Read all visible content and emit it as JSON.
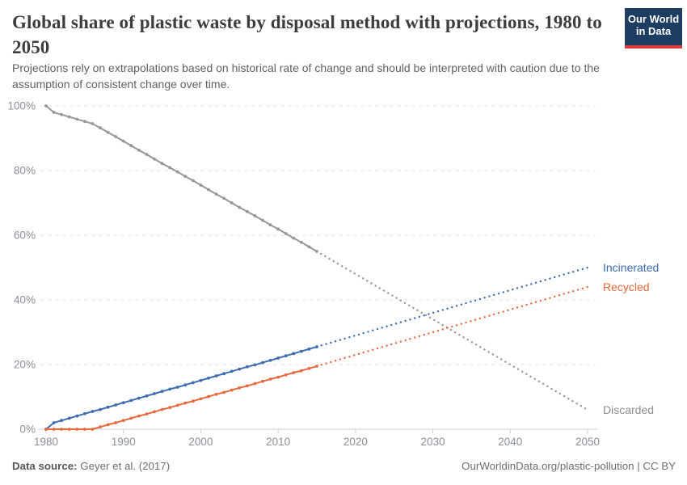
{
  "header": {
    "title": "Global share of plastic waste by disposal method with projections, 1980 to 2050",
    "subtitle": "Projections rely on extrapolations based on historical rate of change and should be interpreted with caution due to the assumption of consistent change over time."
  },
  "logo": {
    "line1": "Our World",
    "line2": "in Data",
    "bg_color": "#1d3d63",
    "accent_color": "#dc3b3b"
  },
  "footer": {
    "source_label": "Data source:",
    "source_value": "Geyer et al. (2017)",
    "license": "OurWorldinData.org/plastic-pollution | CC BY"
  },
  "chart_data": {
    "type": "line",
    "title": "Global share of plastic waste by disposal method with projections, 1980 to 2050",
    "xlabel": "",
    "ylabel": "",
    "x_range": [
      1980,
      2050
    ],
    "y_range": [
      0,
      100
    ],
    "grid": true,
    "grid_color": "#e4e4e4",
    "axis_color": "#c9cdd1",
    "legend_position": "end-of-line-labels",
    "projection_note": "dotted lines after 2015 are projections",
    "x_axis": {
      "ticks": [
        {
          "value": 1980,
          "label": "1980"
        },
        {
          "value": 1990,
          "label": "1990"
        },
        {
          "value": 2000,
          "label": "2000"
        },
        {
          "value": 2010,
          "label": "2010"
        },
        {
          "value": 2020,
          "label": "2020"
        },
        {
          "value": 2030,
          "label": "2030"
        },
        {
          "value": 2040,
          "label": "2040"
        },
        {
          "value": 2050,
          "label": "2050"
        }
      ]
    },
    "y_axis": {
      "ticks": [
        {
          "value": 0,
          "label": "0%"
        },
        {
          "value": 20,
          "label": "20%"
        },
        {
          "value": 40,
          "label": "40%"
        },
        {
          "value": 60,
          "label": "60%"
        },
        {
          "value": 80,
          "label": "80%"
        },
        {
          "value": 100,
          "label": "100%"
        }
      ]
    },
    "historical_years": [
      1980,
      1981,
      1982,
      1983,
      1984,
      1985,
      1986,
      1987,
      1988,
      1989,
      1990,
      1991,
      1992,
      1993,
      1994,
      1995,
      1996,
      1997,
      1998,
      1999,
      2000,
      2001,
      2002,
      2003,
      2004,
      2005,
      2006,
      2007,
      2008,
      2009,
      2010,
      2011,
      2012,
      2013,
      2014,
      2015
    ],
    "series": [
      {
        "name": "Discarded",
        "color": "#979797",
        "label_color": "#8d8d8d",
        "historical_values": [
          100,
          98.0,
          97.3,
          96.6,
          95.9,
          95.2,
          94.5,
          93.2,
          91.8,
          90.5,
          89.1,
          87.7,
          86.3,
          85.0,
          83.6,
          82.2,
          80.9,
          79.6,
          78.2,
          76.9,
          75.5,
          74.1,
          72.7,
          71.4,
          70.0,
          68.6,
          67.3,
          66.0,
          64.6,
          63.2,
          61.9,
          60.5,
          59.1,
          57.8,
          56.4,
          55.0
        ],
        "projection": {
          "years": [
            2015,
            2050
          ],
          "values": [
            55.0,
            6.0
          ]
        }
      },
      {
        "name": "Incinerated",
        "color": "#3d6cb1",
        "label_color": "#3d6cb1",
        "historical_values": [
          0,
          2.0,
          2.7,
          3.4,
          4.1,
          4.8,
          5.5,
          6.1,
          6.8,
          7.5,
          8.2,
          8.9,
          9.6,
          10.3,
          11.0,
          11.7,
          12.4,
          13.0,
          13.7,
          14.4,
          15.1,
          15.8,
          16.5,
          17.2,
          17.9,
          18.6,
          19.3,
          19.9,
          20.6,
          21.3,
          22.0,
          22.7,
          23.4,
          24.1,
          24.8,
          25.5
        ],
        "projection": {
          "years": [
            2015,
            2050
          ],
          "values": [
            25.5,
            50.0
          ]
        }
      },
      {
        "name": "Recycled",
        "color": "#e7693f",
        "label_color": "#e7693f",
        "historical_values": [
          0,
          0,
          0,
          0,
          0,
          0,
          0,
          0.7,
          1.4,
          2.0,
          2.7,
          3.4,
          4.1,
          4.7,
          5.4,
          6.1,
          6.7,
          7.4,
          8.1,
          8.7,
          9.4,
          10.1,
          10.8,
          11.4,
          12.1,
          12.8,
          13.4,
          14.1,
          14.8,
          15.5,
          16.1,
          16.8,
          17.5,
          18.1,
          18.8,
          19.5
        ],
        "projection": {
          "years": [
            2015,
            2050
          ],
          "values": [
            19.5,
            44.0
          ]
        }
      }
    ]
  }
}
